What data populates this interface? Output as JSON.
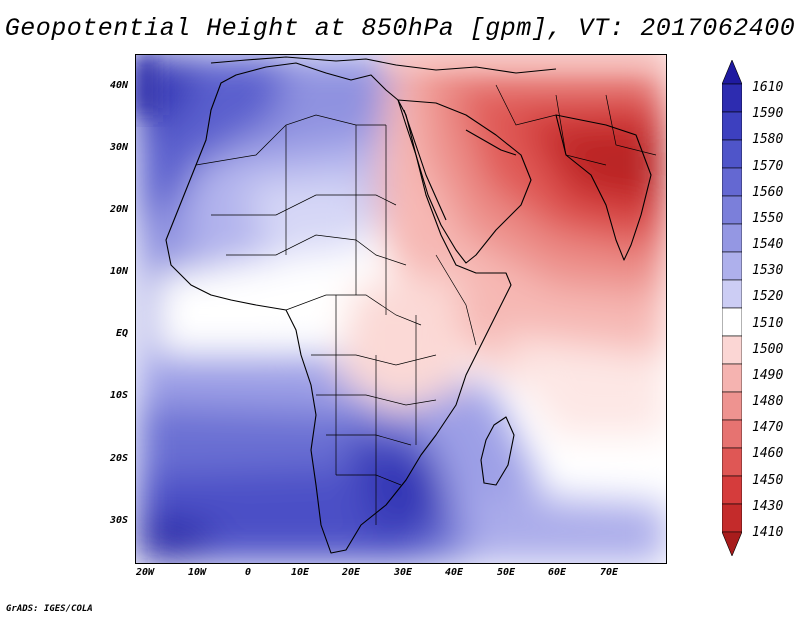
{
  "title": "Geopotential Height at 850hPa [gpm], VT: 2017062400",
  "footer": "GrADS: IGES/COLA",
  "chart_data": {
    "type": "heatmap",
    "variable": "Geopotential Height at 850hPa",
    "units": "gpm",
    "valid_time": "2017062400",
    "lon_range": [
      -22,
      80
    ],
    "lat_range": [
      -37,
      45
    ],
    "lat_ticks": [
      "40N",
      "30N",
      "20N",
      "10N",
      "EQ",
      "10S",
      "20S",
      "30S"
    ],
    "lon_ticks": [
      "20W",
      "10W",
      "0",
      "10E",
      "20E",
      "30E",
      "40E",
      "50E",
      "60E",
      "70E"
    ],
    "colorbar_levels": [
      "1610",
      "1590",
      "1580",
      "1570",
      "1560",
      "1550",
      "1540",
      "1530",
      "1520",
      "1510",
      "1500",
      "1490",
      "1480",
      "1470",
      "1460",
      "1450",
      "1430",
      "1410"
    ],
    "colorbar_colors": [
      "#1f1aa0",
      "#2d2cb0",
      "#3d40bf",
      "#4f55c9",
      "#6468d2",
      "#7b7fda",
      "#9497e3",
      "#aeb0ec",
      "#cccdf4",
      "#ffffff",
      "#fbd6d4",
      "#f5b3b0",
      "#ee9390",
      "#e67371",
      "#df5755",
      "#d53c3c",
      "#c42b2b",
      "#a81c1c"
    ]
  }
}
